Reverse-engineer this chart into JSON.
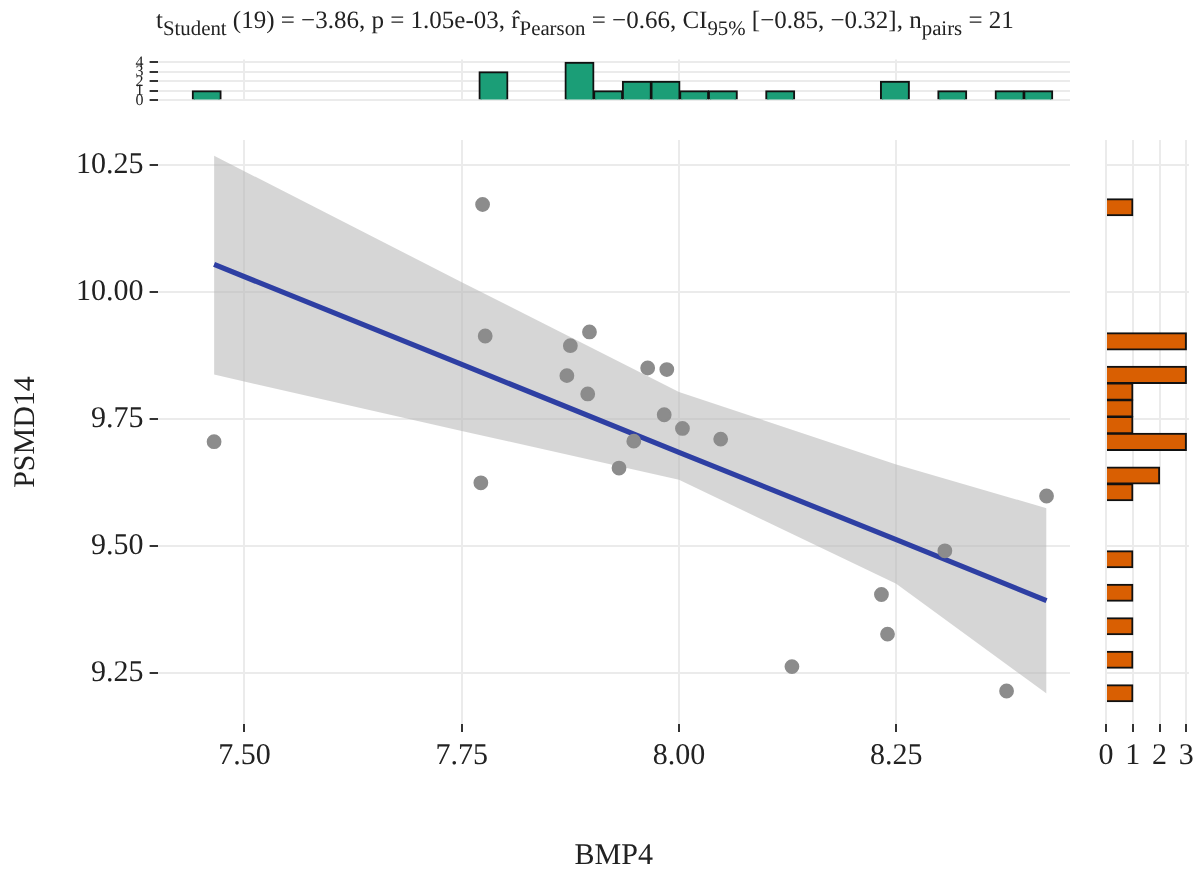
{
  "chart_data": [
    {
      "type": "histogram",
      "title": "t$_{Student}$ (19) = −3.86, p = 1.05e-03, r̂$_{Pearson}$ = −0.66, CI$_{95%}$ [−0.85, −0.32], n$_{pairs}$ = 21",
      "bins": [
        7.44,
        7.473,
        7.506,
        7.539,
        7.572,
        7.605,
        7.638,
        7.671,
        7.704,
        7.737,
        7.77,
        7.803,
        7.836,
        7.869,
        7.902,
        7.935,
        7.968,
        8.001,
        8.034,
        8.067,
        8.1,
        8.133,
        8.166,
        8.199,
        8.232,
        8.265,
        8.298,
        8.331,
        8.364,
        8.397,
        8.43
      ],
      "values": [
        1,
        0,
        0,
        0,
        0,
        0,
        0,
        0,
        0,
        0,
        3,
        0,
        0,
        4,
        1,
        2,
        2,
        1,
        1,
        0,
        1,
        0,
        0,
        0,
        2,
        0,
        1,
        0,
        1,
        1
      ],
      "color": "#1b9e77",
      "xlim": [
        7.4,
        8.45
      ],
      "xticks": [
        7.5,
        7.75,
        8,
        8.25
      ],
      "ylim": [
        0,
        4.3
      ],
      "yticks": [
        0,
        1,
        2,
        3,
        4
      ],
      "grid": true,
      "tick_labels": "y"
    },
    {
      "type": "scatter",
      "xlabel": "BMP4",
      "ylabel": "PSMD14",
      "xlim": [
        7.4,
        8.45
      ],
      "xticks": [
        {
          "value": 7.5,
          "label": "7.50"
        },
        {
          "value": 7.75,
          "label": "7.75"
        },
        {
          "value": 8,
          "label": "8.00"
        },
        {
          "value": 8.25,
          "label": "8.25"
        }
      ],
      "ylim": [
        9.15,
        10.3
      ],
      "yticks": [
        {
          "value": 9.25,
          "label": "9.25"
        },
        {
          "value": 9.5,
          "label": "9.50"
        },
        {
          "value": 9.75,
          "label": "9.75"
        },
        {
          "value": 10,
          "label": "10.00"
        },
        {
          "value": 10.25,
          "label": "10.25"
        }
      ],
      "grid": true,
      "legend": false,
      "series": [
        {
          "type": "scatter",
          "color": "#8c8c8c",
          "marker": "circle",
          "x": [
            7.465,
            7.774,
            7.777,
            7.772,
            7.875,
            7.897,
            7.871,
            7.895,
            7.964,
            7.986,
            7.983,
            8.004,
            8.048,
            7.948,
            7.931,
            8.423,
            8.306,
            8.233,
            8.24,
            8.13,
            8.377
          ],
          "values": [
            9.706,
            10.173,
            9.914,
            9.625,
            9.895,
            9.922,
            9.836,
            9.8,
            9.851,
            9.848,
            9.759,
            9.732,
            9.711,
            9.707,
            9.654,
            9.599,
            9.491,
            9.405,
            9.327,
            9.263,
            9.215
          ]
        },
        {
          "type": "line",
          "color": "#2e3fa3",
          "marker": "none",
          "line_style": "solid",
          "x": [
            7.465,
            7.75,
            8,
            8.25,
            8.423
          ],
          "values": [
            10.055,
            9.858,
            9.685,
            9.513,
            9.393
          ],
          "lower": [
            9.838,
            9.727,
            9.631,
            9.426,
            9.21
          ],
          "upper": [
            10.269,
            10.02,
            9.804,
            9.661,
            9.575
          ]
        }
      ]
    },
    {
      "type": "histogram",
      "orientation": "horizontal",
      "bins": [
        9.194,
        9.227,
        9.26,
        9.293,
        9.326,
        9.359,
        9.392,
        9.425,
        9.458,
        9.491,
        9.524,
        9.557,
        9.59,
        9.623,
        9.656,
        9.689,
        9.722,
        9.755,
        9.788,
        9.821,
        9.854,
        9.887,
        9.92,
        9.953,
        9.986,
        10.019,
        10.052,
        10.085,
        10.118,
        10.151,
        10.184
      ],
      "values": [
        1,
        0,
        1,
        0,
        1,
        0,
        1,
        0,
        1,
        0,
        0,
        0,
        1,
        2,
        0,
        3,
        1,
        1,
        1,
        3,
        0,
        3,
        0,
        0,
        0,
        0,
        0,
        0,
        0,
        1
      ],
      "color": "#d95f02",
      "xlim": [
        0,
        3.1
      ],
      "xticks": [
        0,
        1,
        2,
        3
      ],
      "ylim": [
        9.15,
        10.3
      ],
      "yticks": [
        9.25,
        9.5,
        9.75,
        10,
        10.25
      ],
      "grid": true,
      "tick_labels": "x"
    }
  ]
}
